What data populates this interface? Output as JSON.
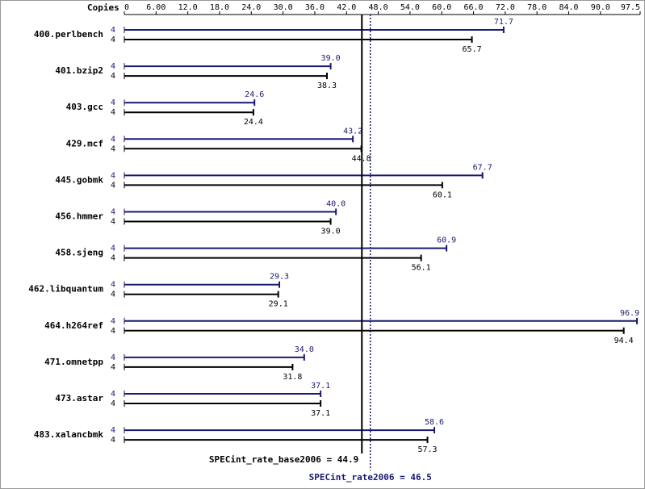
{
  "chart_data": {
    "type": "hbar",
    "axis_label": "Copies",
    "categories": [
      "400.perlbench",
      "401.bzip2",
      "403.gcc",
      "429.mcf",
      "445.gobmk",
      "456.hmmer",
      "458.sjeng",
      "462.libquantum",
      "464.h264ref",
      "471.omnetpp",
      "473.astar",
      "483.xalancbmk"
    ],
    "series": [
      {
        "color": "#191970",
        "copies": [
          4,
          4,
          4,
          4,
          4,
          4,
          4,
          4,
          4,
          4,
          4,
          4
        ],
        "values": [
          71.7,
          39.0,
          24.6,
          43.2,
          67.7,
          40.0,
          60.9,
          29.3,
          96.9,
          34.0,
          37.1,
          58.6
        ],
        "value_labels": [
          "71.7",
          "39.0",
          "24.6",
          "43.2",
          "67.7",
          "40.0",
          "60.9",
          "29.3",
          "96.9",
          "34.0",
          "37.1",
          "58.6"
        ]
      },
      {
        "color": "#000000",
        "copies": [
          4,
          4,
          4,
          4,
          4,
          4,
          4,
          4,
          4,
          4,
          4,
          4
        ],
        "values": [
          65.7,
          38.3,
          24.4,
          44.8,
          60.1,
          39.0,
          56.1,
          29.1,
          94.4,
          31.8,
          37.1,
          57.3
        ],
        "value_labels": [
          "65.7",
          "38.3",
          "24.4",
          "44.8",
          "60.1",
          "39.0",
          "56.1",
          "29.1",
          "94.4",
          "31.8",
          "37.1",
          "57.3"
        ]
      }
    ],
    "xlim": [
      0,
      97.5
    ],
    "xticks": [
      0,
      {
        "value": 6,
        "label": "6.00"
      },
      {
        "value": 12,
        "label": "12.0"
      },
      {
        "value": 18,
        "label": "18.0"
      },
      {
        "value": 24,
        "label": "24.0"
      },
      {
        "value": 30,
        "label": "30.0"
      },
      {
        "value": 36,
        "label": "36.0"
      },
      {
        "value": 42,
        "label": "42.0"
      },
      {
        "value": 48,
        "label": "48.0"
      },
      {
        "value": 54,
        "label": "54.0"
      },
      {
        "value": 60,
        "label": "60.0"
      },
      {
        "value": 66,
        "label": "66.0"
      },
      {
        "value": 72,
        "label": "72.0"
      },
      {
        "value": 78,
        "label": "78.0"
      },
      {
        "value": 84,
        "label": "84.0"
      },
      {
        "value": 90,
        "label": "90.0"
      },
      97.5
    ],
    "reference_lines": [
      {
        "text": "SPECint_rate_base2006 = 44.9",
        "value": 44.9,
        "color": "#000000",
        "style": "solid"
      },
      {
        "text": "SPECint_rate2006 = 46.5",
        "value": 46.5,
        "color": "#191970",
        "style": "dotted"
      }
    ]
  }
}
